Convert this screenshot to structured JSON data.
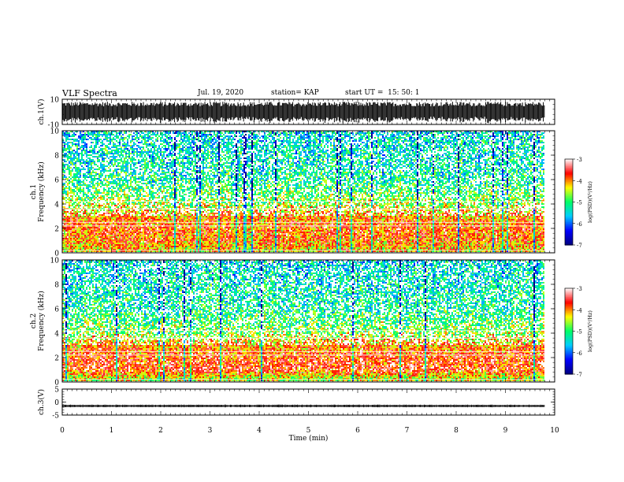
{
  "header": {
    "title": "VLF Spectra",
    "date": "Jul. 19, 2020",
    "station": "station= KAP",
    "start_time": "start UT =  15: 50: 1"
  },
  "chart_data": [
    {
      "type": "line",
      "panel": "ch1-waveform",
      "ylabel": "ch.1(V)",
      "yticks": [
        "10",
        "-10"
      ],
      "ylim": [
        -10,
        10
      ],
      "xlim": [
        0,
        10
      ],
      "data_end_min": 9.8,
      "description_values": {
        "typical_amplitude_V": 8
      }
    },
    {
      "type": "heatmap",
      "panel": "ch1-spectrogram",
      "ylabel": "ch.1\nFrequency (kHz)",
      "yticks": [
        "0",
        "2",
        "4",
        "6",
        "8",
        "10"
      ],
      "ylim": [
        0,
        10
      ],
      "xlim": [
        0,
        10
      ],
      "data_end_min": 9.8,
      "band_profile_kHz": [
        {
          "f": 0.3,
          "level": -4.2
        },
        {
          "f": 1.0,
          "level": -3.9
        },
        {
          "f": 2.0,
          "level": -3.8
        },
        {
          "f": 3.0,
          "level": -4.0
        },
        {
          "f": 4.0,
          "level": -4.6
        },
        {
          "f": 6.0,
          "level": -5.2
        },
        {
          "f": 10.0,
          "level": -5.5
        }
      ],
      "colorbar": {
        "label": "log(PSD)(V²/Hz)",
        "ticks": [
          "-3",
          "-4",
          "-5",
          "-6",
          "-7"
        ],
        "range": [
          -7,
          -3
        ]
      }
    },
    {
      "type": "heatmap",
      "panel": "ch2-spectrogram",
      "ylabel": "ch.2\nFrequency (kHz)",
      "yticks": [
        "0",
        "2",
        "4",
        "6",
        "8",
        "10"
      ],
      "ylim": [
        0,
        10
      ],
      "xlim": [
        0,
        10
      ],
      "data_end_min": 9.8,
      "band_profile_kHz": [
        {
          "f": 0.3,
          "level": -4.5
        },
        {
          "f": 1.0,
          "level": -3.6
        },
        {
          "f": 2.0,
          "level": -3.7
        },
        {
          "f": 3.0,
          "level": -4.0
        },
        {
          "f": 4.0,
          "level": -4.7
        },
        {
          "f": 6.0,
          "level": -5.2
        },
        {
          "f": 10.0,
          "level": -5.5
        }
      ],
      "colorbar": {
        "label": "log(PSD)(V²/Hz)",
        "ticks": [
          "-3",
          "-4",
          "-5",
          "-6",
          "-7"
        ],
        "range": [
          -7,
          -3
        ]
      }
    },
    {
      "type": "line",
      "panel": "ch3-waveform",
      "ylabel": "ch.3(V)",
      "yticks": [
        "5",
        "0",
        "-5"
      ],
      "ylim": [
        -5,
        5
      ],
      "xlim": [
        0,
        10
      ],
      "data_end_min": 9.8,
      "description_values": {
        "typical_amplitude_V": 0.5,
        "offset_V": -1.5
      }
    }
  ],
  "x_axis": {
    "label": "Time (min)",
    "ticks": [
      "0",
      "1",
      "2",
      "3",
      "4",
      "5",
      "6",
      "7",
      "8",
      "9",
      "10"
    ]
  },
  "colors": {
    "waveform": "#000000",
    "background": "#ffffff",
    "colormap": [
      "#000080",
      "#0000ff",
      "#00ccff",
      "#00ff66",
      "#ffff00",
      "#ff0000",
      "#ffffff"
    ]
  }
}
